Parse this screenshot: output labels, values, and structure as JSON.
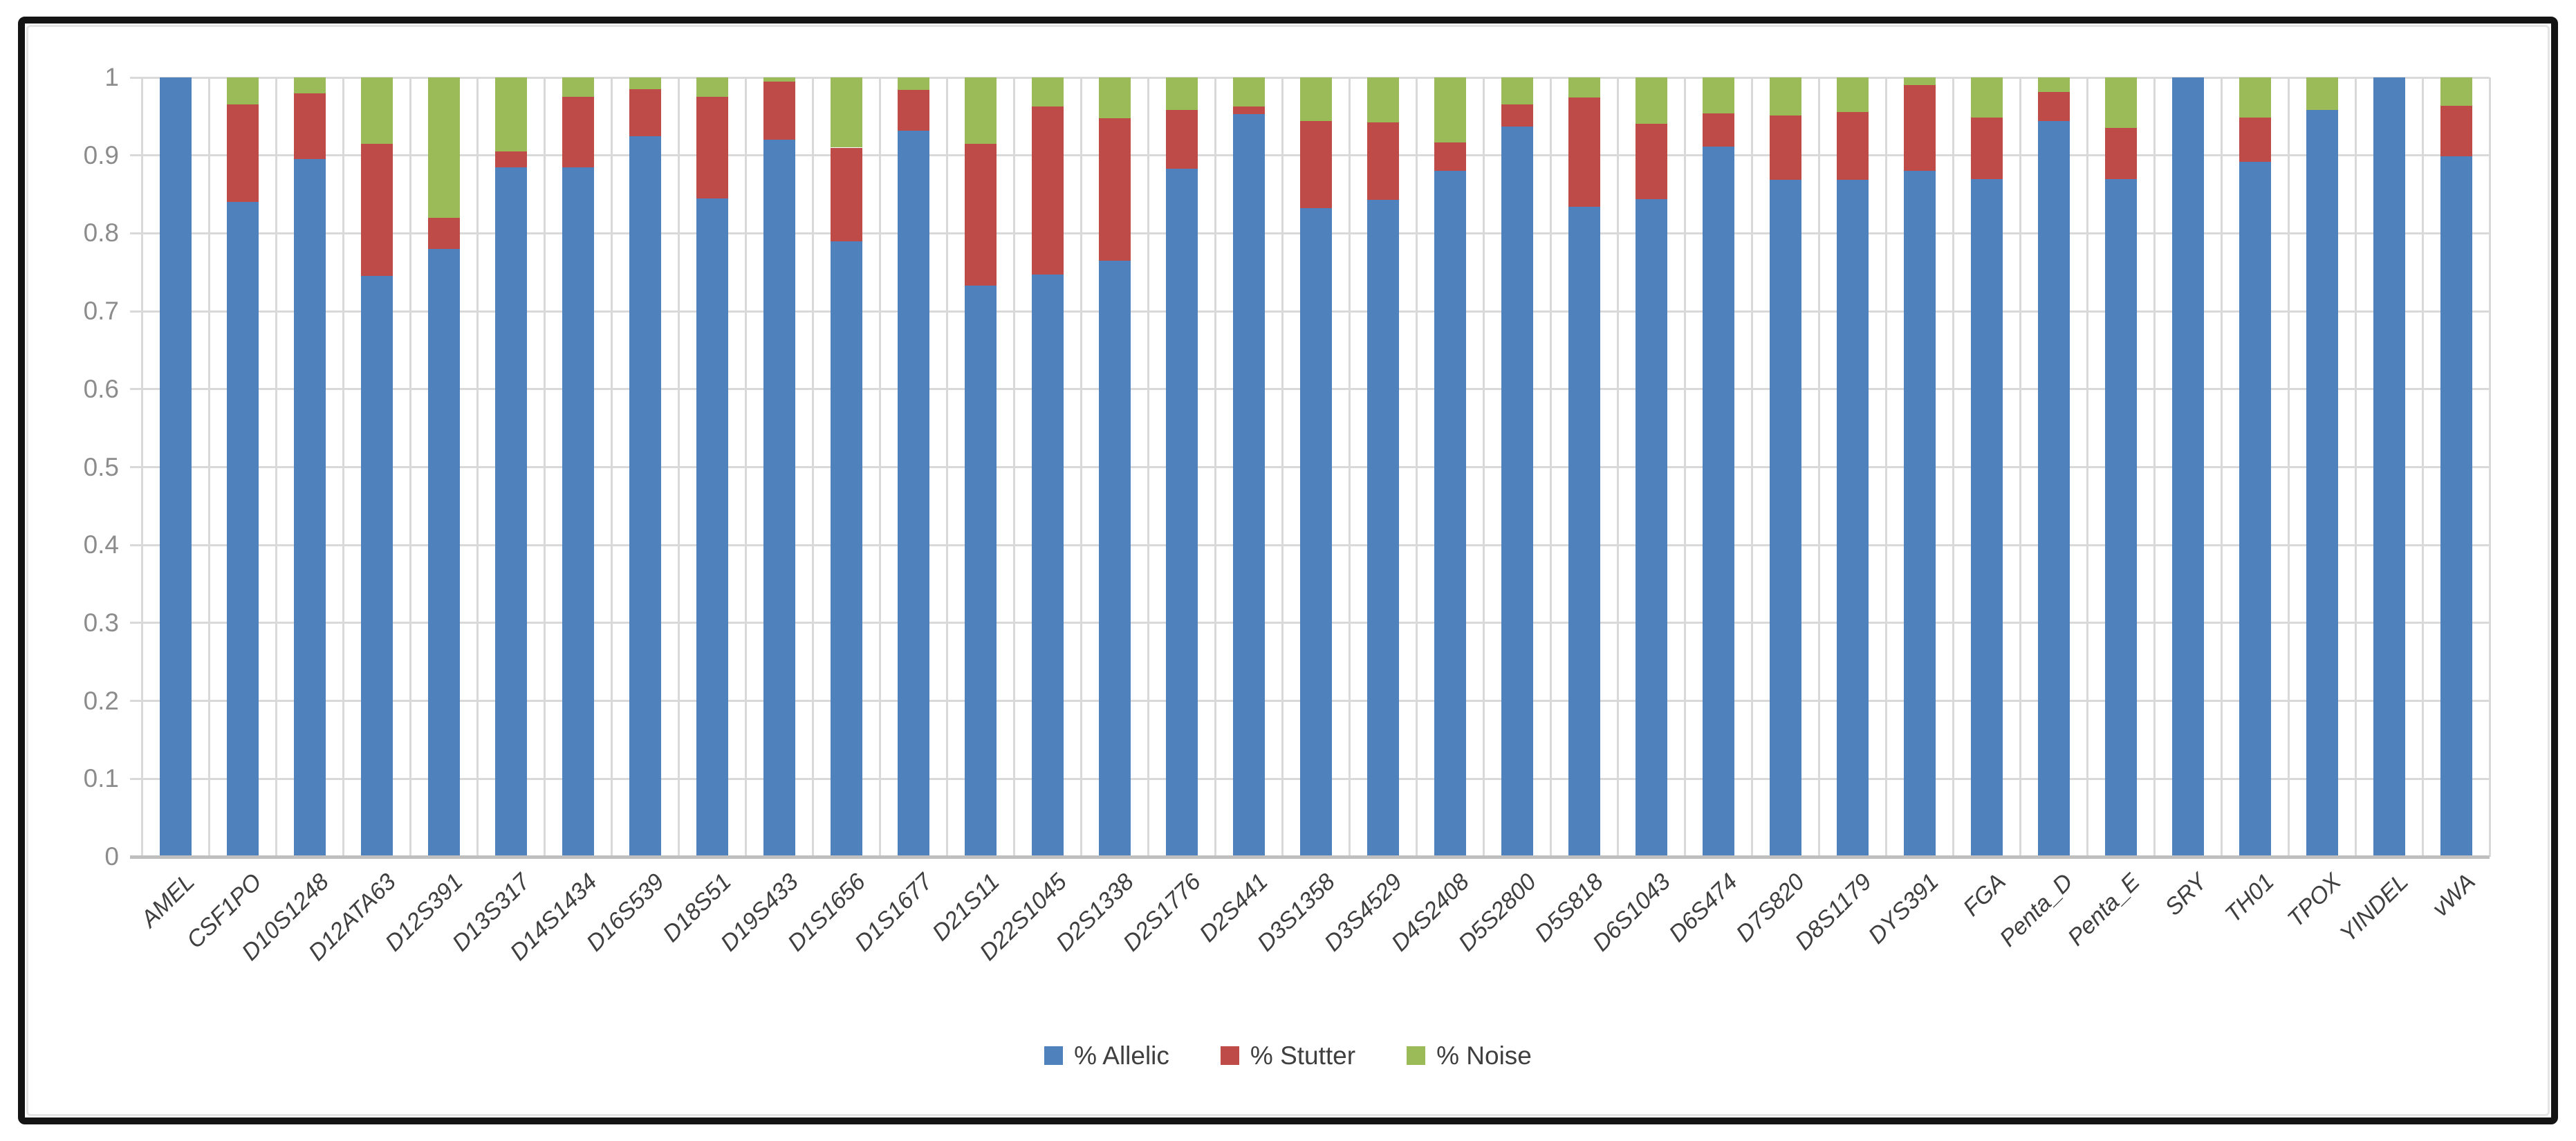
{
  "chart_data": {
    "type": "bar",
    "stacked": true,
    "title": "",
    "xlabel": "",
    "ylabel": "",
    "ylim": [
      0,
      1
    ],
    "ytick_step": 0.1,
    "ytick_labels": [
      "0",
      "0.1",
      "0.2",
      "0.3",
      "0.4",
      "0.5",
      "0.6",
      "0.7",
      "0.8",
      "0.9",
      "1"
    ],
    "grid": "horizontal-and-vertical",
    "legend_position": "bottom-center",
    "categories": [
      "AMEL",
      "CSF1PO",
      "D10S1248",
      "D12ATA63",
      "D12S391",
      "D13S317",
      "D14S1434",
      "D16S539",
      "D18S51",
      "D19S433",
      "D1S1656",
      "D1S1677",
      "D21S11",
      "D22S1045",
      "D2S1338",
      "D2S1776",
      "D2S441",
      "D3S1358",
      "D3S4529",
      "D4S2408",
      "D5S2800",
      "D5S818",
      "D6S1043",
      "D6S474",
      "D7S820",
      "D8S1179",
      "DYS391",
      "FGA",
      "Penta_D",
      "Penta_E",
      "SRY",
      "TH01",
      "TPOX",
      "YINDEL",
      "vWA"
    ],
    "series": [
      {
        "name": "% Allelic",
        "color": "#4F81BD",
        "values": [
          1.0,
          0.84,
          0.895,
          0.745,
          0.78,
          0.885,
          0.885,
          0.925,
          0.845,
          0.92,
          0.79,
          0.932,
          0.733,
          0.747,
          0.765,
          0.883,
          0.953,
          0.832,
          0.843,
          0.88,
          0.937,
          0.834,
          0.844,
          0.911,
          0.869,
          0.869,
          0.88,
          0.87,
          0.944,
          0.87,
          1.0,
          0.892,
          0.958,
          1.0,
          0.899
        ]
      },
      {
        "name": "% Stutter",
        "color": "#BE4B48",
        "values": [
          0,
          0.125,
          0.085,
          0.17,
          0.04,
          0.02,
          0.09,
          0.06,
          0.13,
          0.075,
          0.12,
          0.052,
          0.182,
          0.216,
          0.183,
          0.075,
          0.01,
          0.112,
          0.099,
          0.037,
          0.028,
          0.14,
          0.097,
          0.043,
          0.082,
          0.087,
          0.11,
          0.079,
          0.037,
          0.065,
          0,
          0.057,
          0,
          0,
          0.065
        ]
      },
      {
        "name": "% Noise",
        "color": "#9BBB59",
        "values": [
          0,
          0.035,
          0.02,
          0.085,
          0.18,
          0.095,
          0.025,
          0.015,
          0.025,
          0.005,
          0.09,
          0.016,
          0.085,
          0.037,
          0.052,
          0.042,
          0.037,
          0.056,
          0.058,
          0.083,
          0.035,
          0.026,
          0.059,
          0.046,
          0.049,
          0.044,
          0.01,
          0.051,
          0.019,
          0.065,
          0,
          0.051,
          0.042,
          0,
          0.036
        ]
      }
    ],
    "colors": {
      "gridline": "#d9d9d9",
      "axis_line": "#bfbfbf",
      "ytick_text": "#8c8c8c",
      "xtick_text": "#3f3f3f",
      "frame_border": "#141414"
    }
  }
}
